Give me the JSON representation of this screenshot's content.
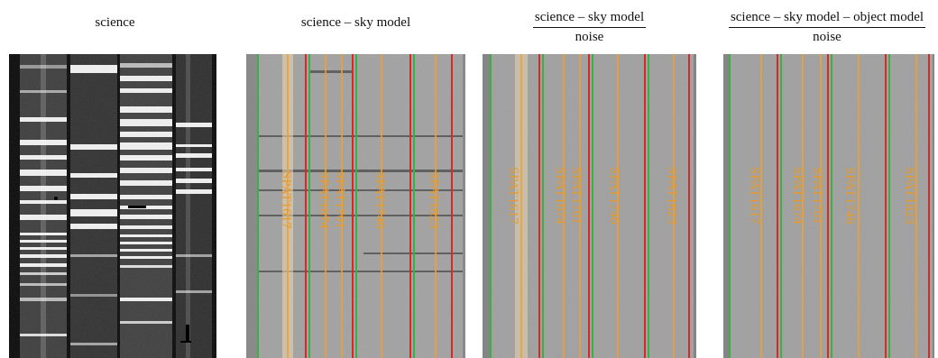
{
  "panels": [
    {
      "title": "science"
    },
    {
      "title": "science – sky model",
      "slit_labels": [
        "SPAT1617",
        "SPAT1674",
        "SPAT1701",
        "SPAT1746",
        "SPAT1823"
      ]
    },
    {
      "title_numerator": "science – sky model",
      "title_denominator": "noise",
      "slit_labels": [
        "SPAT1617",
        "SPAT1674",
        "SPAT1701",
        "SPAT1746",
        "SPAT1823"
      ]
    },
    {
      "title_numerator": "science – sky model – object model",
      "title_denominator": "noise",
      "slit_labels": [
        "SPAT1617",
        "SPAT1674",
        "SPAT1701",
        "SPAT1746",
        "SPAT1823"
      ]
    }
  ],
  "colors": {
    "slit_left_edge": "#3cb043",
    "slit_right_edge": "#d62a2a",
    "object_trace": "#f0a030",
    "label": "#e89a2a"
  }
}
